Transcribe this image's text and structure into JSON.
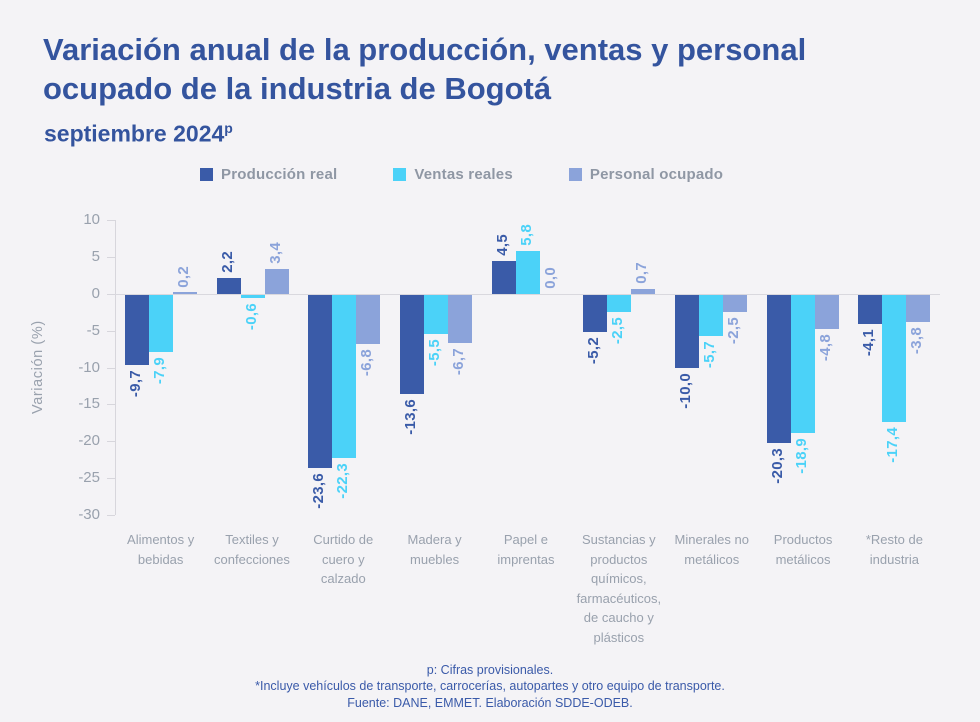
{
  "header": {
    "title": "Variación anual de la producción, ventas y personal ocupado de la industria de Bogotá",
    "subtitle": "septiembre 2024",
    "subtitle_superscript": "p"
  },
  "legend": {
    "items": [
      {
        "label": "Producción real",
        "color": "#3a5ba8"
      },
      {
        "label": "Ventas reales",
        "color": "#4bd2f8"
      },
      {
        "label": "Personal ocupado",
        "color": "#8ba3da"
      }
    ]
  },
  "chart_data": {
    "type": "bar",
    "title": "Variación anual de la producción, ventas y personal ocupado de la industria de Bogotá",
    "subtitle": "septiembre 2024p",
    "ylabel": "Variación (%)",
    "ylim": [
      -30,
      10
    ],
    "ytick_step": 5,
    "grid": "zero-line-only",
    "legend_position": "top",
    "decimal_separator": ",",
    "categories": [
      "Alimentos y bebidas",
      "Textiles y confecciones",
      "Curtido de cuero y calzado",
      "Madera y muebles",
      "Papel e imprentas",
      "Sustancias y productos químicos, farmacéuticos, de caucho y plásticos",
      "Minerales no metálicos",
      "Productos metálicos",
      "*Resto de industria"
    ],
    "series": [
      {
        "name": "Producción real",
        "color": "#3a5ba8",
        "values": [
          -9.7,
          2.2,
          -23.6,
          -13.6,
          4.5,
          -5.2,
          -10.0,
          -20.3,
          -4.1
        ],
        "labels": [
          "-9,7",
          "2,2",
          "-23,6",
          "-13,6",
          "4,5",
          "-5,2",
          "-10,0",
          "-20,3",
          "-4,1"
        ]
      },
      {
        "name": "Ventas reales",
        "color": "#4bd2f8",
        "values": [
          -7.9,
          -0.6,
          -22.3,
          -5.5,
          5.8,
          -2.5,
          -5.7,
          -18.9,
          -17.4
        ],
        "labels": [
          "-7,9",
          "-0,6",
          "-22,3",
          "-5,5",
          "5,8",
          "-2,5",
          "-5,7",
          "-18,9",
          "-17,4"
        ]
      },
      {
        "name": "Personal ocupado",
        "color": "#8ba3da",
        "values": [
          0.2,
          3.4,
          -6.8,
          -6.7,
          0.0,
          0.7,
          -2.5,
          -4.8,
          -3.8
        ],
        "labels": [
          "0,2",
          "3,4",
          "-6,8",
          "-6,7",
          "0,0",
          "0,7",
          "-2,5",
          "-4,8",
          "-3,8"
        ]
      }
    ]
  },
  "footer": {
    "lines": [
      "p: Cifras provisionales.",
      "*Incluye vehículos de transporte, carrocerías, autopartes y otro equipo de transporte.",
      "Fuente: DANE, EMMET. Elaboración SDDE-ODEB."
    ]
  }
}
